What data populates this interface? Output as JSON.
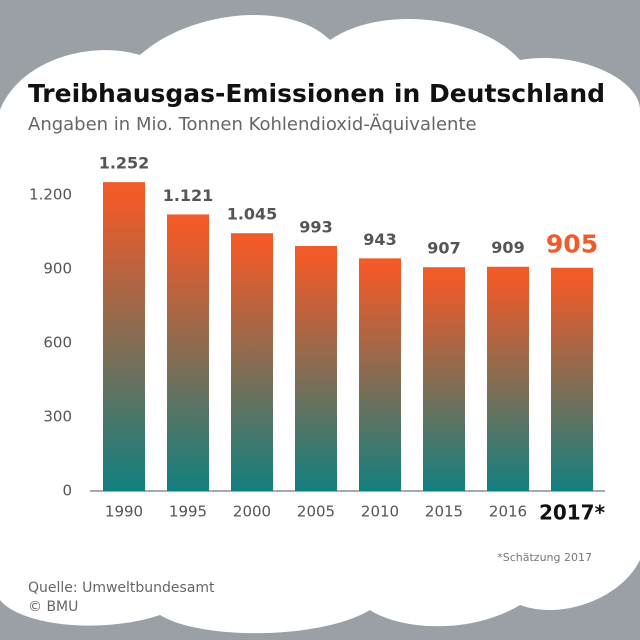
{
  "chart_data": {
    "type": "bar",
    "title": "Treibhausgas-Emissionen in Deutschland",
    "subtitle": "Angaben in Mio. Tonnen Kohlendioxid-Äquivalente",
    "categories": [
      "1990",
      "1995",
      "2000",
      "2005",
      "2010",
      "2015",
      "2016",
      "2017*"
    ],
    "values": [
      1252,
      1121,
      1045,
      993,
      943,
      907,
      909,
      905
    ],
    "value_labels": [
      "1.252",
      "1.121",
      "1.045",
      "993",
      "943",
      "907",
      "909",
      "905"
    ],
    "colors": [
      "#f15a29",
      "#12807f"
    ],
    "highlight_color": "#f15a29",
    "ylim": [
      0,
      1300
    ],
    "yticks": [
      0,
      300,
      600,
      900,
      {
        "value": 1200,
        "label": "1.200"
      }
    ],
    "grid": false,
    "footnote": "*Schätzung 2017",
    "source": "Quelle: Umweltbundesamt",
    "credit": "© BMU"
  }
}
